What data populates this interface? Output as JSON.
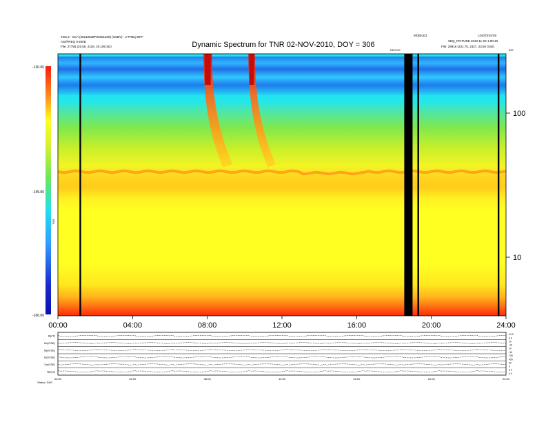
{
  "chart_data": {
    "type": "heatmap",
    "title": "Dynamic Spectrum for TNR 02-NOV-2010, DOY = 306",
    "x_ticks": [
      "00:00",
      "04:00",
      "08:00",
      "12:00",
      "16:00",
      "20:00",
      "24:00"
    ],
    "x_range_hours": [
      0,
      24
    ],
    "colorbar": {
      "label": "TNR",
      "ticks": [
        "-130.00",
        "-145.00",
        "-160.00"
      ],
      "range": [
        -160,
        -130
      ],
      "colors": [
        "#1a2ad0",
        "#2f9bff",
        "#22e0ec",
        "#69e85a",
        "#d8f030",
        "#ffff22",
        "#ffd21e",
        "#ff8c1a",
        "#ff2a10"
      ]
    },
    "right_axis": {
      "ticks": [
        "100",
        "10"
      ],
      "scale": "log"
    },
    "header_left": [
      "TDS,2 - SCA (20210628P00301306) (USBV) - 2-FREQ BPF",
      "ASI/FREQ 0-200D",
      "File:  27756 (25.59, 2226, 20.195 SE)"
    ],
    "header_right": [
      "MOBILE2",
      "LDSITESVS0",
      "SEQ_PICTURE  2010-11-02 1:00:18",
      "File:  29916 (231.75, 2327, 23.50 GSE)"
    ],
    "header_mid_labels": [
      "DEVICE",
      "INS"
    ],
    "data_gaps_hours": [
      1.2,
      18.65,
      18.95,
      19.3,
      23.6
    ],
    "data_gap_band_hours": [
      18.55,
      18.95
    ],
    "bursts": [
      {
        "start_hour": 7.8,
        "end_hour": 8.25,
        "kind": "type III"
      },
      {
        "start_hour": 10.2,
        "end_hour": 10.55,
        "kind": "type III"
      }
    ],
    "plasma_line_level": -143.5,
    "lower_panel": {
      "rows": [
        {
          "label": "B(nT)",
          "axis": [
            "24.0",
            "0.0"
          ]
        },
        {
          "label": "Bx(GSE)",
          "axis": [
            "10",
            "-10"
          ]
        },
        {
          "label": "By(GSE)",
          "axis": [
            "10",
            "-10"
          ]
        },
        {
          "label": "Bz(GSE)",
          "axis": [
            "750",
            "450"
          ]
        },
        {
          "label": "Vx(GSE)",
          "axis": [
            "30",
            "0"
          ]
        },
        {
          "label": "Np(cc)",
          "axis": [
            "3.0",
            "0.0"
          ]
        }
      ],
      "x_ticks": [
        "00:00",
        "04:00",
        "08:00",
        "12:00",
        "16:00",
        "20:00",
        "24:00"
      ],
      "footer_left": "Status: DAS"
    }
  }
}
